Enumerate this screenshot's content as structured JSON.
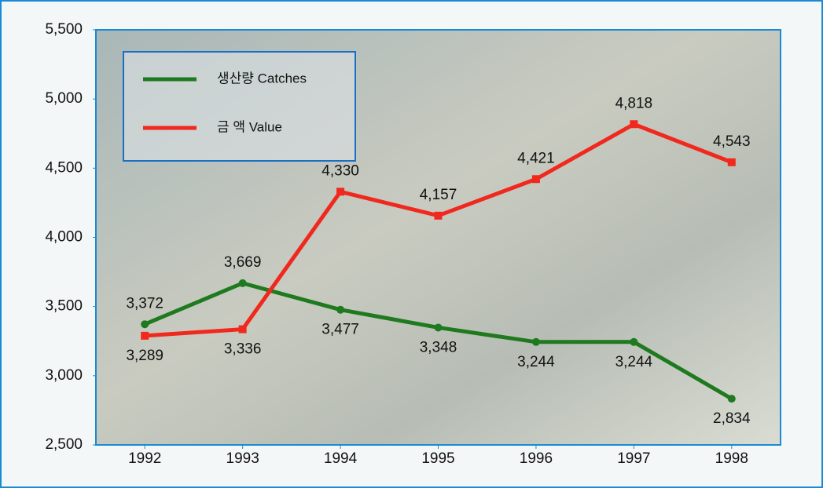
{
  "chart_data": {
    "type": "line",
    "categories": [
      "1992",
      "1993",
      "1994",
      "1995",
      "1996",
      "1997",
      "1998"
    ],
    "series": [
      {
        "name": "생산량 Catches",
        "color": "#1f7a1f",
        "values": [
          3372,
          3669,
          3477,
          3348,
          3244,
          3244,
          2834
        ],
        "value_labels": [
          "3,372",
          "3,669",
          "3,477",
          "3,348",
          "3,244",
          "3,244",
          "2,834"
        ]
      },
      {
        "name": "금 액 Value",
        "color": "#f0281e",
        "values": [
          3289,
          3336,
          4330,
          4157,
          4421,
          4818,
          4543
        ],
        "value_labels": [
          "3,289",
          "3,336",
          "4,330",
          "4,157",
          "4,421",
          "4,818",
          "4,543"
        ]
      }
    ],
    "ylim": [
      2500,
      5500
    ],
    "yticks": [
      {
        "value": 2500,
        "label": "2,500"
      },
      {
        "value": 3000,
        "label": "3,000"
      },
      {
        "value": 3500,
        "label": "3,500"
      },
      {
        "value": 4000,
        "label": "4,000"
      },
      {
        "value": 4500,
        "label": "4,500"
      },
      {
        "value": 5000,
        "label": "5,000"
      },
      {
        "value": 5500,
        "label": "5,500"
      }
    ]
  }
}
